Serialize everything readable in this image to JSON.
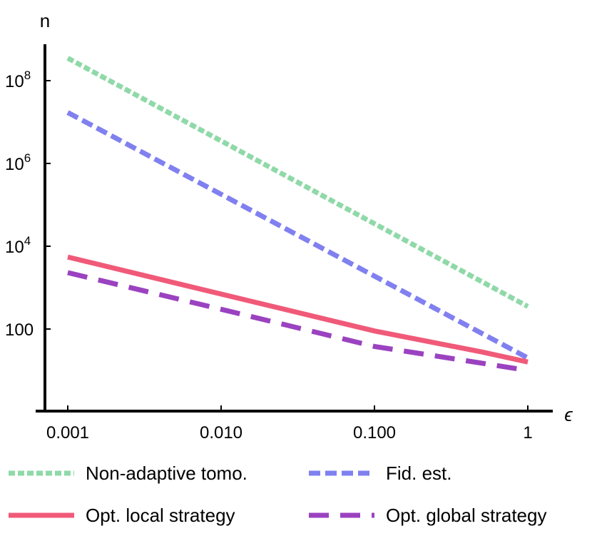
{
  "chart_data": {
    "type": "line",
    "xscale": "log",
    "yscale": "log",
    "xlabel": "ϵ",
    "ylabel": "n",
    "xlim": [
      0.00065,
      1.6
    ],
    "ylim": [
      8,
      1000000000
    ],
    "x_ticks": [
      {
        "value": 0.001,
        "label": "0.001"
      },
      {
        "value": 0.01,
        "label": "0.010"
      },
      {
        "value": 0.1,
        "label": "0.100"
      },
      {
        "value": 1,
        "label": "1"
      }
    ],
    "y_ticks": [
      {
        "value": 100,
        "base": "100",
        "exp": ""
      },
      {
        "value": 10000,
        "base": "10",
        "exp": "4"
      },
      {
        "value": 1000000,
        "base": "10",
        "exp": "6"
      },
      {
        "value": 100000000,
        "base": "10",
        "exp": "8"
      }
    ],
    "grid": false,
    "legend_position": "bottom",
    "series": [
      {
        "name": "Non-adaptive tomo.",
        "color": "#8fd9a8",
        "style": "dashed-fine",
        "points": [
          [
            0.001,
            350000000
          ],
          [
            1,
            350
          ]
        ]
      },
      {
        "name": "Fid. est.",
        "color": "#8080f0",
        "style": "dashed",
        "points": [
          [
            0.001,
            17000000
          ],
          [
            1,
            20
          ]
        ]
      },
      {
        "name": "Opt. local strategy",
        "color": "#f05a78",
        "style": "solid",
        "points": [
          [
            0.001,
            5500
          ],
          [
            0.01,
            700
          ],
          [
            0.1,
            90
          ],
          [
            0.5,
            28
          ],
          [
            1,
            16
          ]
        ]
      },
      {
        "name": "Opt. global strategy",
        "color": "#9b42c0",
        "style": "long-dashed",
        "points": [
          [
            0.001,
            2300
          ],
          [
            0.01,
            300
          ],
          [
            0.1,
            38
          ],
          [
            0.5,
            15
          ],
          [
            1,
            10
          ]
        ]
      }
    ]
  }
}
